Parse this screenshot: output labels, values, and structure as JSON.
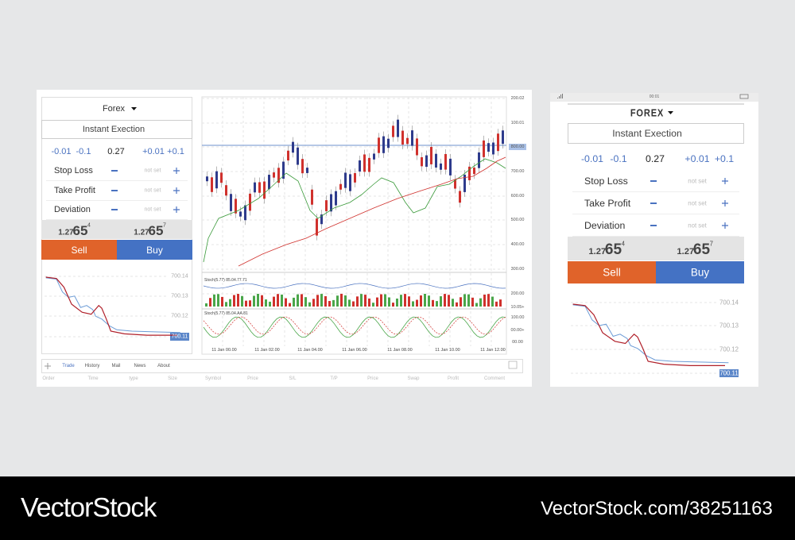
{
  "desktop": {
    "symbol": "Forex",
    "mode": "Instant Exection",
    "steps": [
      "-0.01",
      "-0.1",
      "0.27",
      "+0.01",
      "+0.1"
    ],
    "rows": [
      {
        "label": "Stop Loss",
        "value": "not set"
      },
      {
        "label": "Take Profit",
        "value": "not set"
      },
      {
        "label": "Deviation",
        "value": "not set"
      }
    ],
    "sell_price": {
      "big_figure": "1.27",
      "pips": "65",
      "fraction": "4"
    },
    "buy_price": {
      "big_figure": "1.27",
      "pips": "65",
      "fraction": "7"
    },
    "sell": "Sell",
    "buy": "Buy",
    "mini_chart_labels": [
      "700.14",
      "700.13",
      "700.12",
      "700.11"
    ],
    "chart_y_labels": [
      "200.02",
      "100.01",
      "800.00",
      "700.00",
      "600.00",
      "500.00",
      "400.00",
      "300.00",
      "200.00",
      "10.05+",
      "100.00",
      "00.00+",
      "00.00"
    ],
    "indicators": [
      "Stoch(5.77) 85.04.77.71",
      "Stoch(5.77) 85.04.AA.81"
    ],
    "chart_x_labels": [
      "11 Jan 00.00",
      "11 Jan 02.00",
      "11 Jan 04.00",
      "11 Jan 06.00",
      "11 Jan 08.00",
      "11 Jan 10.00",
      "11 Jan 12.00"
    ],
    "tabs": [
      "Trade",
      "History",
      "Mail",
      "News",
      "About"
    ],
    "columns": [
      "Order",
      "Time",
      "type",
      "Size",
      "Symbol",
      "Price",
      "S/L",
      "T/P",
      "Price",
      "Swap",
      "Profit",
      "Comment"
    ]
  },
  "mobile": {
    "time": "00:01",
    "symbol": "FOREX",
    "mode": "Instant Exection",
    "steps": [
      "-0.01",
      "-0.1",
      "0.27",
      "+0.01",
      "+0.1"
    ],
    "rows": [
      {
        "label": "Stop Loss",
        "value": "not set"
      },
      {
        "label": "Take Profit",
        "value": "not set"
      },
      {
        "label": "Deviation",
        "value": "not set"
      }
    ],
    "sell_price": {
      "big_figure": "1.27",
      "pips": "65",
      "fraction": "4"
    },
    "buy_price": {
      "big_figure": "1.27",
      "pips": "65",
      "fraction": "7"
    },
    "sell": "Sell",
    "buy": "Buy",
    "mini_chart_labels": [
      "700.14",
      "700.13",
      "700.12",
      "700.11"
    ]
  },
  "footer": {
    "brand": "VectorStock",
    "url": "VectorStock.com/38251163"
  }
}
